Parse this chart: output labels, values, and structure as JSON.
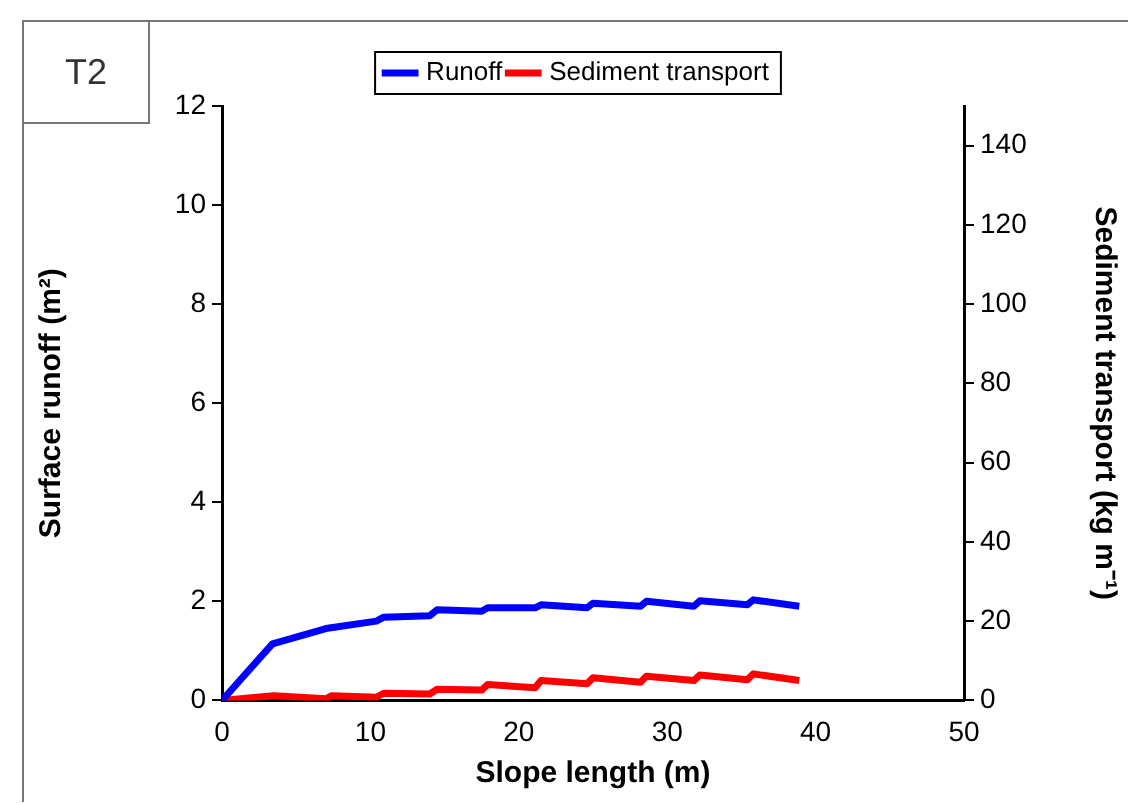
{
  "chart_data": {
    "type": "line",
    "title": "T2",
    "xlabel": "Slope length (m)",
    "ylabel": "Surface runoff (m²)",
    "y2label": "Sediment transport (kg m⁻¹)",
    "xlim": [
      0,
      50
    ],
    "xticks": [
      0,
      10,
      20,
      30,
      40,
      50
    ],
    "ylim": [
      0,
      12
    ],
    "yticks": [
      0,
      2,
      4,
      6,
      8,
      10,
      12
    ],
    "y2lim": [
      0,
      150
    ],
    "y2ticks": [
      0,
      20,
      40,
      60,
      80,
      100,
      120,
      140
    ],
    "legend": "top",
    "grid": false,
    "marker": "none",
    "line_style": "solid",
    "series": [
      {
        "name": "Runoff",
        "color": "#0000ff",
        "x": [
          0,
          3.4,
          7.0,
          10.4,
          10.9,
          14,
          14.5,
          17.5,
          17.9,
          21.1,
          21.5,
          24.6,
          25,
          28.2,
          28.6,
          31.8,
          32.2,
          35.4,
          35.8,
          38.9
        ],
        "values": [
          0,
          1.14,
          1.45,
          1.6,
          1.68,
          1.71,
          1.83,
          1.8,
          1.87,
          1.87,
          1.93,
          1.87,
          1.96,
          1.9,
          2.0,
          1.9,
          2.01,
          1.93,
          2.03,
          1.9
        ]
      },
      {
        "name": "Sediment transport",
        "color": "#ff0000",
        "axis": "y2",
        "x": [
          0,
          3.5,
          7.0,
          7.4,
          10.4,
          10.9,
          14,
          14.5,
          17.5,
          17.9,
          21.1,
          21.5,
          24.6,
          25,
          28.2,
          28.6,
          31.8,
          32.2,
          35.4,
          35.8,
          38.9
        ],
        "values": [
          0,
          1.2,
          0.4,
          1.2,
          0.8,
          1.8,
          1.6,
          2.8,
          2.6,
          4.0,
          3.2,
          5.0,
          4.2,
          5.7,
          4.6,
          6.1,
          5.0,
          6.4,
          5.2,
          6.7,
          5.0
        ]
      }
    ]
  }
}
